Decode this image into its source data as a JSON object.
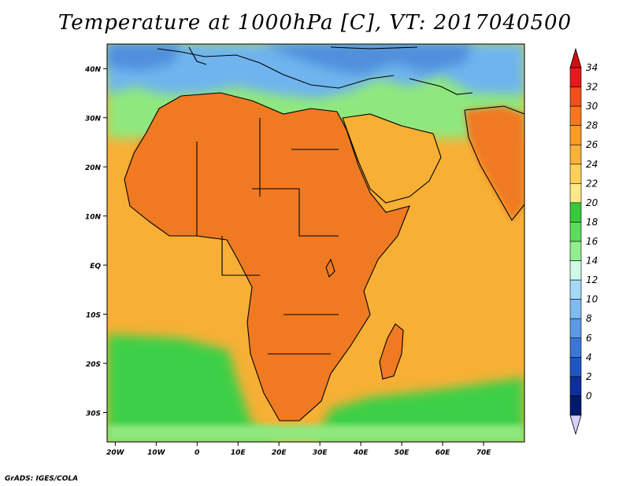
{
  "title": "Temperature at 1000hPa [C], VT: 2017040500",
  "credit": "GrADS: IGES/COLA",
  "map": {
    "lon_range": [
      -22,
      80
    ],
    "lat_range": [
      -36,
      45
    ],
    "lon_ticks": [
      {
        "value": -20,
        "label": "20W"
      },
      {
        "value": -10,
        "label": "10W"
      },
      {
        "value": 0,
        "label": "0"
      },
      {
        "value": 10,
        "label": "10E"
      },
      {
        "value": 20,
        "label": "20E"
      },
      {
        "value": 30,
        "label": "30E"
      },
      {
        "value": 40,
        "label": "40E"
      },
      {
        "value": 50,
        "label": "50E"
      },
      {
        "value": 60,
        "label": "60E"
      },
      {
        "value": 70,
        "label": "70E"
      }
    ],
    "lat_ticks": [
      {
        "value": 40,
        "label": "40N"
      },
      {
        "value": 30,
        "label": "30N"
      },
      {
        "value": 20,
        "label": "20N"
      },
      {
        "value": 10,
        "label": "10N"
      },
      {
        "value": 0,
        "label": "EQ"
      },
      {
        "value": -10,
        "label": "10S"
      },
      {
        "value": -20,
        "label": "20S"
      },
      {
        "value": -30,
        "label": "30S"
      }
    ]
  },
  "colorbar": {
    "labels": [
      "34",
      "32",
      "30",
      "28",
      "26",
      "24",
      "22",
      "20",
      "18",
      "16",
      "14",
      "12",
      "10",
      "8",
      "6",
      "4",
      "2",
      "0"
    ],
    "colors": [
      "#e41a1c",
      "#f0501e",
      "#f57820",
      "#f99b28",
      "#fbb23c",
      "#fdd05a",
      "#fde88a",
      "#38c83a",
      "#5ddc5b",
      "#92ee8c",
      "#cffae8",
      "#a6d8f8",
      "#7fbbf0",
      "#5b99e4",
      "#3b77d8",
      "#1f55c3",
      "#0d2f9a",
      "#001a6e"
    ],
    "top_arrow_color": "#d01010",
    "bottom_arrow_color": "#d8d0f8"
  },
  "colors": {
    "ocean_warm": "#f7b035",
    "ocean_south": "#3ccf46",
    "land_hot": "#d8391c",
    "land_very_hot": "#c52a10",
    "land_warm": "#f07a22",
    "north_cool": "#8fe87e",
    "mediterranean": "#6fb4ee",
    "cold_north": "#4f8fdc",
    "coastline": "#000000"
  }
}
